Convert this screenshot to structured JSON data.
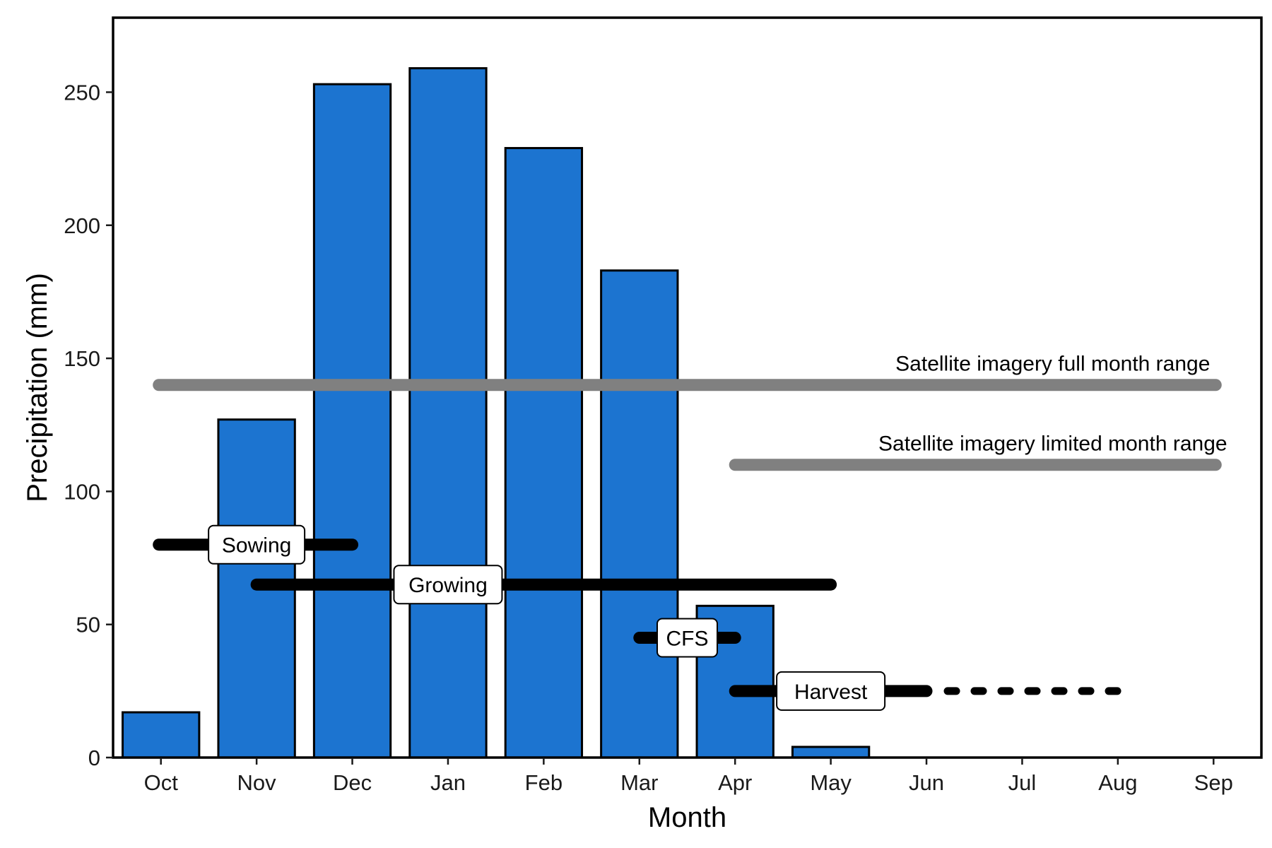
{
  "chart_data": {
    "type": "bar",
    "title": "",
    "xlabel": "Month",
    "ylabel": "Precipitation (mm)",
    "categories": [
      "Oct",
      "Nov",
      "Dec",
      "Jan",
      "Feb",
      "Mar",
      "Apr",
      "May",
      "Jun",
      "Jul",
      "Aug",
      "Sep"
    ],
    "values": [
      17,
      127,
      253,
      259,
      229,
      183,
      57,
      4,
      0,
      0,
      0,
      0
    ],
    "ylim": [
      0,
      278
    ],
    "yticks": [
      0,
      50,
      100,
      150,
      200,
      250
    ],
    "grid": false,
    "bar_color": "#1c74d0",
    "bar_edge_color": "#000000",
    "range_lines": [
      {
        "label": "Satellite imagery full month range",
        "start": "Oct",
        "end": "Sep",
        "y": 140,
        "color": "#808080",
        "label_style": "text-above",
        "label_at": "Jul"
      },
      {
        "label": "Satellite imagery limited month range",
        "start": "Apr",
        "end": "Sep",
        "y": 110,
        "color": "#808080",
        "label_style": "text-above",
        "label_at": "Jul"
      }
    ],
    "stages": [
      {
        "label": "Sowing",
        "start": "Oct",
        "end": "Dec",
        "y": 80,
        "color": "#000000",
        "label_at": "Nov"
      },
      {
        "label": "Growing",
        "start": "Nov",
        "end": "May",
        "y": 65,
        "color": "#000000",
        "label_at": "Jan"
      },
      {
        "label": "CFS",
        "start": "Mar",
        "end": "Apr",
        "y": 45,
        "color": "#000000",
        "label_at": "Mar-Apr"
      },
      {
        "label": "Harvest",
        "start": "Apr",
        "end": "Jun",
        "y": 25,
        "color": "#000000",
        "label_at": "May",
        "dotted_extension_end": "Aug"
      }
    ]
  }
}
